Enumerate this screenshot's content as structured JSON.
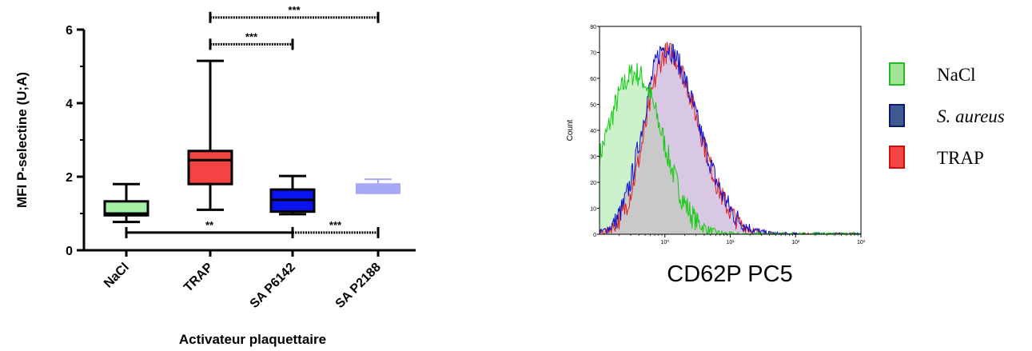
{
  "chart_data": [
    {
      "type": "box",
      "ylabel": "MFI P-selectine (U;A)",
      "xlabel": "Activateur plaquettaire",
      "ylim": [
        0,
        6
      ],
      "yticks": [
        "0",
        "2",
        "4",
        "6"
      ],
      "categories": [
        "NaCl",
        "TRAP",
        "SA P6142",
        "SA P2188"
      ],
      "boxes": [
        {
          "category": "NaCl",
          "min": 0.77,
          "q1": 0.95,
          "median": 1.0,
          "q3": 1.33,
          "max": 1.8,
          "color": "#a6f0a6"
        },
        {
          "category": "TRAP",
          "min": 1.1,
          "q1": 1.8,
          "median": 2.45,
          "q3": 2.7,
          "max": 5.15,
          "color": "#f44343"
        },
        {
          "category": "SA P6142",
          "min": 0.98,
          "q1": 1.05,
          "median": 1.37,
          "q3": 1.65,
          "max": 2.02,
          "color": "#0a14f0"
        },
        {
          "category": "SA P2188",
          "min": 1.55,
          "q1": 1.55,
          "median": 1.72,
          "q3": 1.8,
          "max": 1.93,
          "color": "#a7a7f7"
        }
      ],
      "significance": [
        {
          "from": "TRAP",
          "to": "SA P2188",
          "label": "***",
          "y": 6.33,
          "style": "dotted"
        },
        {
          "from": "TRAP",
          "to": "SA P6142",
          "label": "***",
          "y": 5.6,
          "style": "dotted"
        },
        {
          "from": "NaCl",
          "to": "SA P6142",
          "label": "**",
          "y": 0.48,
          "style": "solid"
        },
        {
          "from": "SA P6142",
          "to": "SA P2188",
          "label": "***",
          "y": 0.48,
          "style": "dotted"
        }
      ]
    },
    {
      "type": "area",
      "xlabel": "CD62P PC5",
      "ylabel": "Count",
      "xscale": "log",
      "xlim": [
        0.1,
        1000
      ],
      "ylim": [
        0,
        80
      ],
      "yticks": [
        "0",
        "10",
        "20",
        "30",
        "40",
        "50",
        "60",
        "70",
        "80"
      ],
      "xticks": [
        "10⁰",
        "10¹",
        "10²",
        "10³"
      ],
      "series": [
        {
          "name": "NaCl",
          "peak_x": 0.35,
          "peak_y": 62,
          "color": "#11cc11",
          "fill": "#ccf2cc"
        },
        {
          "name": "S. aureus",
          "peak_x": 1.0,
          "peak_y": 72,
          "color": "#1111cc",
          "fill": "#d9c8e4"
        },
        {
          "name": "TRAP",
          "peak_x": 1.1,
          "peak_y": 70,
          "color": "#dd2020",
          "fill": "#d9c8e4"
        }
      ]
    }
  ]
}
